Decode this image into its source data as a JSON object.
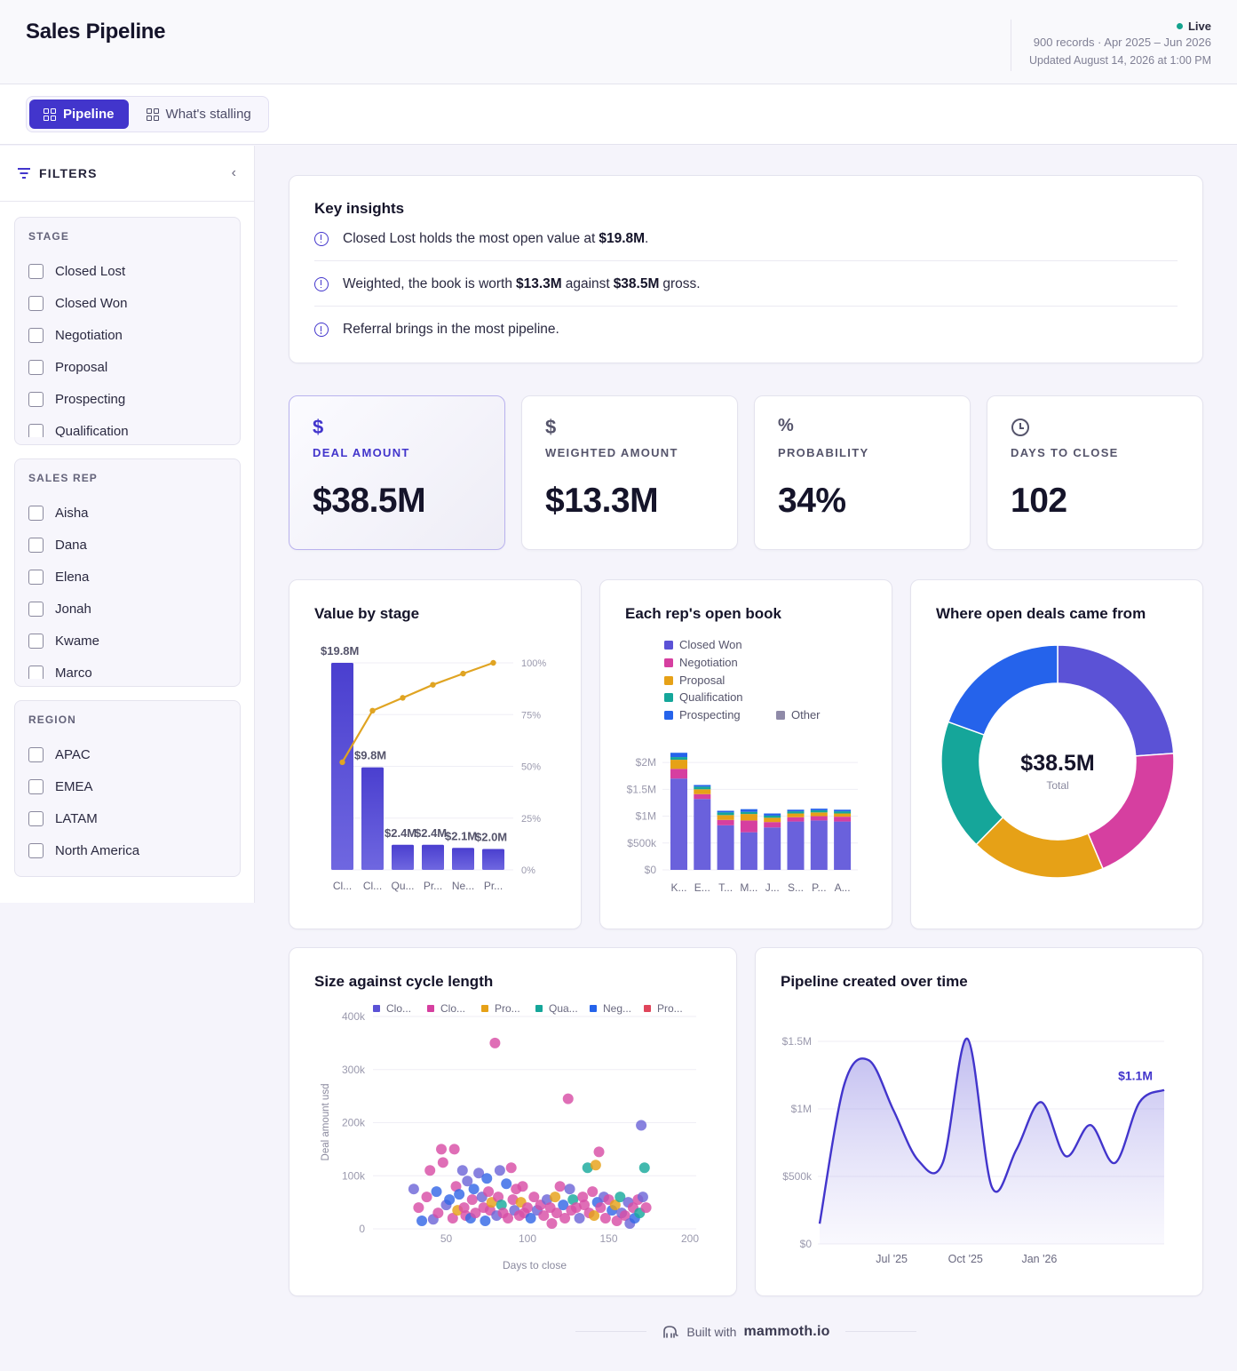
{
  "header": {
    "title": "Sales Pipeline",
    "live_label": "Live",
    "records_line": "900 records · Apr 2025 – Jun 2026",
    "updated_line": "Updated August 14, 2026 at 1:00 PM",
    "live_color": "#14a38e"
  },
  "tabs": [
    {
      "label": "Pipeline",
      "icon": "grid-icon",
      "active": true
    },
    {
      "label": "What's stalling",
      "icon": "grid-icon",
      "active": false
    }
  ],
  "filters": {
    "title": "FILTERS",
    "groups": [
      {
        "title": "STAGE",
        "items": [
          "Closed Lost",
          "Closed Won",
          "Negotiation",
          "Proposal",
          "Prospecting",
          "Qualification"
        ]
      },
      {
        "title": "SALES REP",
        "items": [
          "Aisha",
          "Dana",
          "Elena",
          "Jonah",
          "Kwame",
          "Marco"
        ]
      },
      {
        "title": "REGION",
        "items": [
          "APAC",
          "EMEA",
          "LATAM",
          "North America"
        ]
      }
    ]
  },
  "insights": {
    "title": "Key insights",
    "items": [
      {
        "pre": "Closed Lost holds the most open value at",
        "bold": "$19.8M",
        "mid": ".",
        "bold2": "",
        "post": ""
      },
      {
        "pre": "Weighted, the book is worth",
        "bold": "$13.3M",
        "mid": "against",
        "bold2": "$38.5M",
        "post": "gross."
      },
      {
        "pre": "Referral brings in the most pipeline.",
        "bold": "",
        "mid": "",
        "bold2": "",
        "post": ""
      }
    ]
  },
  "kpis": [
    {
      "icon": "dollar-icon",
      "glyph": "$",
      "label": "DEAL AMOUNT",
      "value": "$38.5M",
      "active": true
    },
    {
      "icon": "dollar-icon",
      "glyph": "$",
      "label": "WEIGHTED AMOUNT",
      "value": "$13.3M",
      "active": false
    },
    {
      "icon": "percent-icon",
      "glyph": "%",
      "label": "PROBABILITY",
      "value": "34%",
      "active": false
    },
    {
      "icon": "clock-icon",
      "glyph": "",
      "label": "DAYS TO CLOSE",
      "value": "102",
      "active": false
    }
  ],
  "colors": {
    "accent": "#4235cc",
    "closed_lost": "#5b52d6",
    "closed_won": "#5b52d6",
    "negotiation": "#d63fa0",
    "proposal": "#e6a117",
    "qualification": "#15a69a",
    "prospecting": "#2563eb",
    "other": "#8f8aa8",
    "line": "#e0a422",
    "red": "#e0455b"
  },
  "chart_data": [
    {
      "type": "bar",
      "title": "Value by stage",
      "categories": [
        "Cl...",
        "Cl...",
        "Qu...",
        "Pr...",
        "Ne...",
        "Pr..."
      ],
      "values": [
        19.8,
        9.8,
        2.4,
        2.4,
        2.1,
        2.0
      ],
      "value_labels": [
        "$19.8M",
        "$9.8M",
        "$2.4M",
        "$2.4M",
        "$2.1M",
        "$2.0M"
      ],
      "cumulative_pct": [
        51.4,
        76.9,
        83.1,
        89.4,
        94.8,
        100
      ],
      "right_axis_ticks": [
        "100%",
        "75%",
        "50%",
        "25%",
        "0%"
      ],
      "ylim": [
        0,
        19.8
      ]
    },
    {
      "type": "bar",
      "title": "Each rep's open book",
      "stacked": true,
      "legend": [
        {
          "name": "Closed Won",
          "color": "#5b52d6"
        },
        {
          "name": "Negotiation",
          "color": "#d63fa0"
        },
        {
          "name": "Proposal",
          "color": "#e6a117"
        },
        {
          "name": "Qualification",
          "color": "#15a69a"
        },
        {
          "name": "Prospecting",
          "color": "#2563eb"
        },
        {
          "name": "Other",
          "color": "#8f8aa8"
        }
      ],
      "categories": [
        "K...",
        "E...",
        "T...",
        "M...",
        "J...",
        "S...",
        "P...",
        "A..."
      ],
      "series": [
        {
          "name": "Closed Won",
          "values": [
            1.7,
            1.32,
            0.83,
            0.7,
            0.79,
            0.9,
            0.92,
            0.9
          ]
        },
        {
          "name": "Negotiation",
          "values": [
            0.18,
            0.09,
            0.1,
            0.22,
            0.1,
            0.08,
            0.08,
            0.09
          ]
        },
        {
          "name": "Proposal",
          "values": [
            0.17,
            0.09,
            0.09,
            0.12,
            0.08,
            0.07,
            0.07,
            0.06
          ]
        },
        {
          "name": "Qualification",
          "values": [
            0.05,
            0.05,
            0.05,
            0.04,
            0.04,
            0.04,
            0.04,
            0.04
          ]
        },
        {
          "name": "Prospecting",
          "values": [
            0.08,
            0.03,
            0.03,
            0.05,
            0.04,
            0.03,
            0.03,
            0.03
          ]
        }
      ],
      "y_ticks": [
        "$2M",
        "$1.5M",
        "$1M",
        "$500k",
        "$0"
      ],
      "ylim": [
        0,
        2.2
      ]
    },
    {
      "type": "pie",
      "title": "Where open deals came from",
      "center_value": "$38.5M",
      "center_label": "Total",
      "values": [
        9.2,
        7.6,
        7.2,
        7.0,
        7.5
      ],
      "colors": [
        "#5b52d6",
        "#d63fa0",
        "#e6a117",
        "#15a69a",
        "#2563eb"
      ]
    },
    {
      "type": "scatter",
      "title": "Size against cycle length",
      "xlabel": "Days to close",
      "ylabel": "Deal amount usd",
      "legend": [
        {
          "name": "Clo...",
          "color": "#5b52d6"
        },
        {
          "name": "Clo...",
          "color": "#d63fa0"
        },
        {
          "name": "Pro...",
          "color": "#e6a117"
        },
        {
          "name": "Qua...",
          "color": "#15a69a"
        },
        {
          "name": "Neg...",
          "color": "#2563eb"
        },
        {
          "name": "Pro...",
          "color": "#e0455b"
        }
      ],
      "x_ticks": [
        50,
        100,
        150,
        200
      ],
      "y_ticks": [
        "400k",
        "300k",
        "200k",
        "100k",
        "0"
      ],
      "xlim": [
        0,
        200
      ],
      "ylim": [
        0,
        400000
      ],
      "points": [
        [
          30,
          75000,
          0
        ],
        [
          33,
          40000,
          1
        ],
        [
          35,
          15000,
          4
        ],
        [
          38,
          60000,
          1
        ],
        [
          40,
          110000,
          1
        ],
        [
          42,
          18000,
          0
        ],
        [
          44,
          70000,
          4
        ],
        [
          45,
          30000,
          1
        ],
        [
          47,
          150000,
          1
        ],
        [
          48,
          125000,
          1
        ],
        [
          50,
          45000,
          0
        ],
        [
          52,
          55000,
          4
        ],
        [
          54,
          20000,
          1
        ],
        [
          55,
          150000,
          1
        ],
        [
          56,
          80000,
          1
        ],
        [
          57,
          35000,
          2
        ],
        [
          58,
          65000,
          4
        ],
        [
          60,
          110000,
          0
        ],
        [
          61,
          40000,
          1
        ],
        [
          62,
          25000,
          1
        ],
        [
          63,
          90000,
          0
        ],
        [
          65,
          20000,
          4
        ],
        [
          66,
          55000,
          1
        ],
        [
          67,
          75000,
          4
        ],
        [
          68,
          30000,
          1
        ],
        [
          70,
          105000,
          0
        ],
        [
          72,
          60000,
          0
        ],
        [
          73,
          40000,
          1
        ],
        [
          74,
          15000,
          4
        ],
        [
          75,
          95000,
          4
        ],
        [
          76,
          70000,
          1
        ],
        [
          77,
          35000,
          1
        ],
        [
          78,
          50000,
          2
        ],
        [
          80,
          350000,
          1
        ],
        [
          81,
          25000,
          0
        ],
        [
          82,
          60000,
          1
        ],
        [
          83,
          110000,
          0
        ],
        [
          84,
          45000,
          3
        ],
        [
          85,
          30000,
          1
        ],
        [
          87,
          85000,
          4
        ],
        [
          88,
          20000,
          1
        ],
        [
          90,
          115000,
          1
        ],
        [
          91,
          55000,
          1
        ],
        [
          92,
          35000,
          0
        ],
        [
          93,
          75000,
          1
        ],
        [
          95,
          25000,
          1
        ],
        [
          96,
          50000,
          2
        ],
        [
          97,
          80000,
          1
        ],
        [
          98,
          30000,
          1
        ],
        [
          100,
          40000,
          1
        ],
        [
          102,
          20000,
          4
        ],
        [
          104,
          60000,
          1
        ],
        [
          106,
          35000,
          0
        ],
        [
          108,
          45000,
          1
        ],
        [
          110,
          25000,
          1
        ],
        [
          112,
          55000,
          0
        ],
        [
          114,
          40000,
          1
        ],
        [
          115,
          10000,
          1
        ],
        [
          117,
          60000,
          2
        ],
        [
          118,
          30000,
          1
        ],
        [
          120,
          80000,
          1
        ],
        [
          122,
          45000,
          4
        ],
        [
          123,
          20000,
          1
        ],
        [
          125,
          245000,
          1
        ],
        [
          126,
          75000,
          0
        ],
        [
          127,
          35000,
          1
        ],
        [
          128,
          55000,
          3
        ],
        [
          130,
          40000,
          1
        ],
        [
          132,
          20000,
          0
        ],
        [
          134,
          60000,
          1
        ],
        [
          135,
          45000,
          1
        ],
        [
          137,
          115000,
          3
        ],
        [
          138,
          30000,
          1
        ],
        [
          140,
          70000,
          1
        ],
        [
          141,
          25000,
          2
        ],
        [
          142,
          120000,
          2
        ],
        [
          143,
          50000,
          4
        ],
        [
          144,
          145000,
          1
        ],
        [
          145,
          40000,
          1
        ],
        [
          147,
          60000,
          0
        ],
        [
          148,
          20000,
          1
        ],
        [
          150,
          55000,
          1
        ],
        [
          152,
          35000,
          4
        ],
        [
          154,
          45000,
          2
        ],
        [
          155,
          15000,
          1
        ],
        [
          157,
          60000,
          3
        ],
        [
          158,
          30000,
          0
        ],
        [
          160,
          25000,
          1
        ],
        [
          162,
          50000,
          0
        ],
        [
          163,
          10000,
          0
        ],
        [
          165,
          40000,
          1
        ],
        [
          166,
          20000,
          4
        ],
        [
          168,
          55000,
          1
        ],
        [
          169,
          30000,
          3
        ],
        [
          170,
          195000,
          0
        ],
        [
          171,
          60000,
          0
        ],
        [
          172,
          115000,
          3
        ],
        [
          173,
          40000,
          1
        ]
      ]
    },
    {
      "type": "area",
      "title": "Pipeline created over time",
      "x_ticks": [
        "Jul '25",
        "Oct '25",
        "Jan '26"
      ],
      "y_ticks": [
        "$1.5M",
        "$1M",
        "$500k",
        "$0"
      ],
      "end_label": "$1.1M",
      "ylim": [
        0,
        1.5
      ],
      "x": [
        "Apr '25",
        "May '25",
        "Jun '25",
        "Jul '25",
        "Aug '25",
        "Sep '25",
        "Oct '25",
        "Nov '25",
        "Dec '25",
        "Jan '26",
        "Feb '26",
        "Mar '26",
        "Apr '26",
        "May '26",
        "Jun '26"
      ],
      "values": [
        0.15,
        1.18,
        1.36,
        0.99,
        0.62,
        0.6,
        1.52,
        0.42,
        0.7,
        1.05,
        0.65,
        0.88,
        0.6,
        1.05,
        1.14
      ]
    }
  ],
  "footer": {
    "built_with": "Built with",
    "brand": "mammoth.io",
    "icon": "mammoth-icon"
  }
}
